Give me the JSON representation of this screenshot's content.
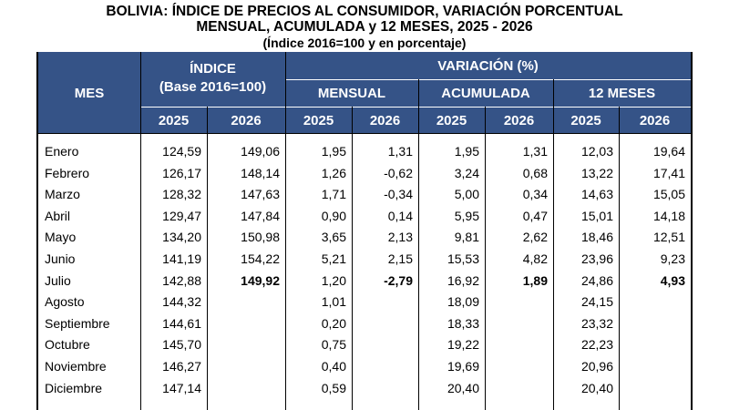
{
  "title": {
    "line1": "BOLIVIA: ÍNDICE DE PRECIOS AL CONSUMIDOR, VARIACIÓN PORCENTUAL",
    "line2": "MENSUAL, ACUMULADA y 12 MESES, 2025 - 2026",
    "line3": "(Índice 2016=100 y en porcentaje)"
  },
  "header": {
    "mes": "MES",
    "indice": "ÍNDICE",
    "indice_base": "(Base 2016=100)",
    "variacion": "VARIACIÓN (%)",
    "mensual": "MENSUAL",
    "acumulada": "ACUMULADA",
    "doce_meses": "12 MESES",
    "year_a": "2025",
    "year_b": "2026"
  },
  "rows": [
    {
      "mes": "Enero",
      "idx25": "124,59",
      "idx26": "149,06",
      "men25": "1,95",
      "men26": "1,31",
      "acu25": "1,95",
      "acu26": "1,31",
      "m1225": "12,03",
      "m1226": "19,64"
    },
    {
      "mes": "Febrero",
      "idx25": "126,17",
      "idx26": "148,14",
      "men25": "1,26",
      "men26": "-0,62",
      "acu25": "3,24",
      "acu26": "0,68",
      "m1225": "13,22",
      "m1226": "17,41"
    },
    {
      "mes": "Marzo",
      "idx25": "128,32",
      "idx26": "147,63",
      "men25": "1,71",
      "men26": "-0,34",
      "acu25": "5,00",
      "acu26": "0,34",
      "m1225": "14,63",
      "m1226": "15,05"
    },
    {
      "mes": "Abril",
      "idx25": "129,47",
      "idx26": "147,84",
      "men25": "0,90",
      "men26": "0,14",
      "acu25": "5,95",
      "acu26": "0,47",
      "m1225": "15,01",
      "m1226": "14,18"
    },
    {
      "mes": "Mayo",
      "idx25": "134,20",
      "idx26": "150,98",
      "men25": "3,65",
      "men26": "2,13",
      "acu25": "9,81",
      "acu26": "2,62",
      "m1225": "18,46",
      "m1226": "12,51"
    },
    {
      "mes": "Junio",
      "idx25": "141,19",
      "idx26": "154,22",
      "men25": "5,21",
      "men26": "2,15",
      "acu25": "15,53",
      "acu26": "4,82",
      "m1225": "23,96",
      "m1226": "9,23"
    },
    {
      "mes": "Julio",
      "idx25": "142,88",
      "idx26": "149,92",
      "men25": "1,20",
      "men26": "-2,79",
      "acu25": "16,92",
      "acu26": "1,89",
      "m1225": "24,86",
      "m1226": "4,93"
    },
    {
      "mes": "Agosto",
      "idx25": "144,32",
      "idx26": "",
      "men25": "1,01",
      "men26": "",
      "acu25": "18,09",
      "acu26": "",
      "m1225": "24,15",
      "m1226": ""
    },
    {
      "mes": "Septiembre",
      "idx25": "144,61",
      "idx26": "",
      "men25": "0,20",
      "men26": "",
      "acu25": "18,33",
      "acu26": "",
      "m1225": "23,32",
      "m1226": ""
    },
    {
      "mes": "Octubre",
      "idx25": "145,70",
      "idx26": "",
      "men25": "0,75",
      "men26": "",
      "acu25": "19,22",
      "acu26": "",
      "m1225": "22,23",
      "m1226": ""
    },
    {
      "mes": "Noviembre",
      "idx25": "146,27",
      "idx26": "",
      "men25": "0,40",
      "men26": "",
      "acu25": "19,69",
      "acu26": "",
      "m1225": "20,96",
      "m1226": ""
    },
    {
      "mes": "Diciembre",
      "idx25": "147,14",
      "idx26": "",
      "men25": "0,59",
      "men26": "",
      "acu25": "20,40",
      "acu26": "",
      "m1225": "20,40",
      "m1226": ""
    }
  ],
  "bold_row": "Julio",
  "colors": {
    "header_bg": "#355387",
    "header_text": "#ffffff"
  }
}
